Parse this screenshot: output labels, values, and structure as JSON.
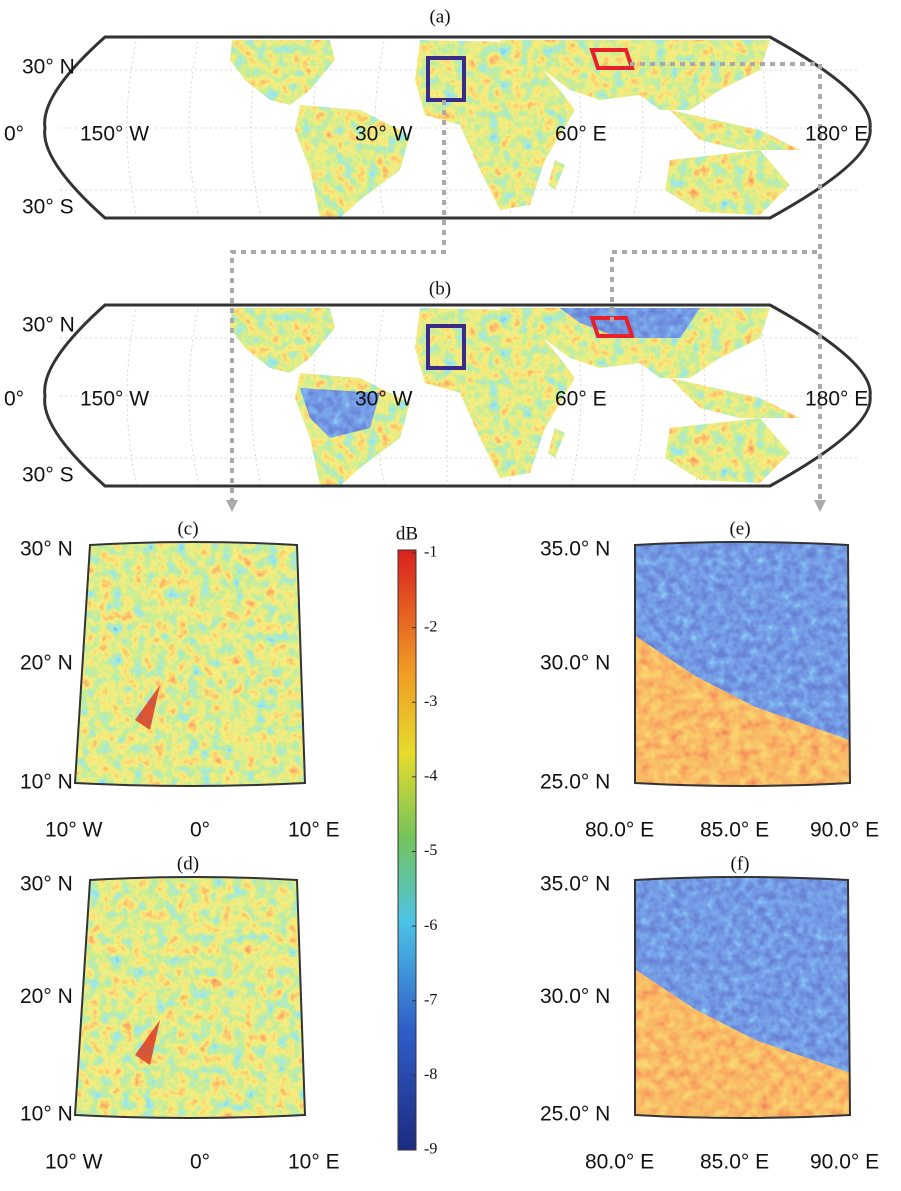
{
  "panels": [
    {
      "label": "(a)",
      "lat_labels": [
        "30° N",
        "0°",
        "30° S"
      ],
      "lon_labels": [
        "150° W",
        "30° W",
        "60° E",
        "180° E"
      ]
    },
    {
      "label": "(b)",
      "lat_labels": [
        "30° N",
        "0°",
        "30° S"
      ],
      "lon_labels": [
        "150° W",
        "30° W",
        "60° E",
        "180° E"
      ]
    },
    {
      "label": "(c)",
      "lat_labels": [
        "30° N",
        "20° N",
        "10° N"
      ],
      "lon_labels": [
        "10° W",
        "0°",
        "10° E"
      ]
    },
    {
      "label": "(d)",
      "lat_labels": [
        "30° N",
        "20° N",
        "10° N"
      ],
      "lon_labels": [
        "10° W",
        "0°",
        "10° E"
      ]
    },
    {
      "label": "(e)",
      "lat_labels": [
        "35.0° N",
        "30.0° N",
        "25.0° N"
      ],
      "lon_labels": [
        "80.0° E",
        "85.0° E",
        "90.0° E"
      ]
    },
    {
      "label": "(f)",
      "lat_labels": [
        "35.0° N",
        "30.0° N",
        "25.0° N"
      ],
      "lon_labels": [
        "80.0° E",
        "85.0° E",
        "90.0° E"
      ]
    }
  ],
  "colorbar": {
    "label": "dB",
    "ticks": [
      -1,
      -2,
      -3,
      -4,
      -5,
      -6,
      -7,
      -8,
      -9
    ]
  }
}
